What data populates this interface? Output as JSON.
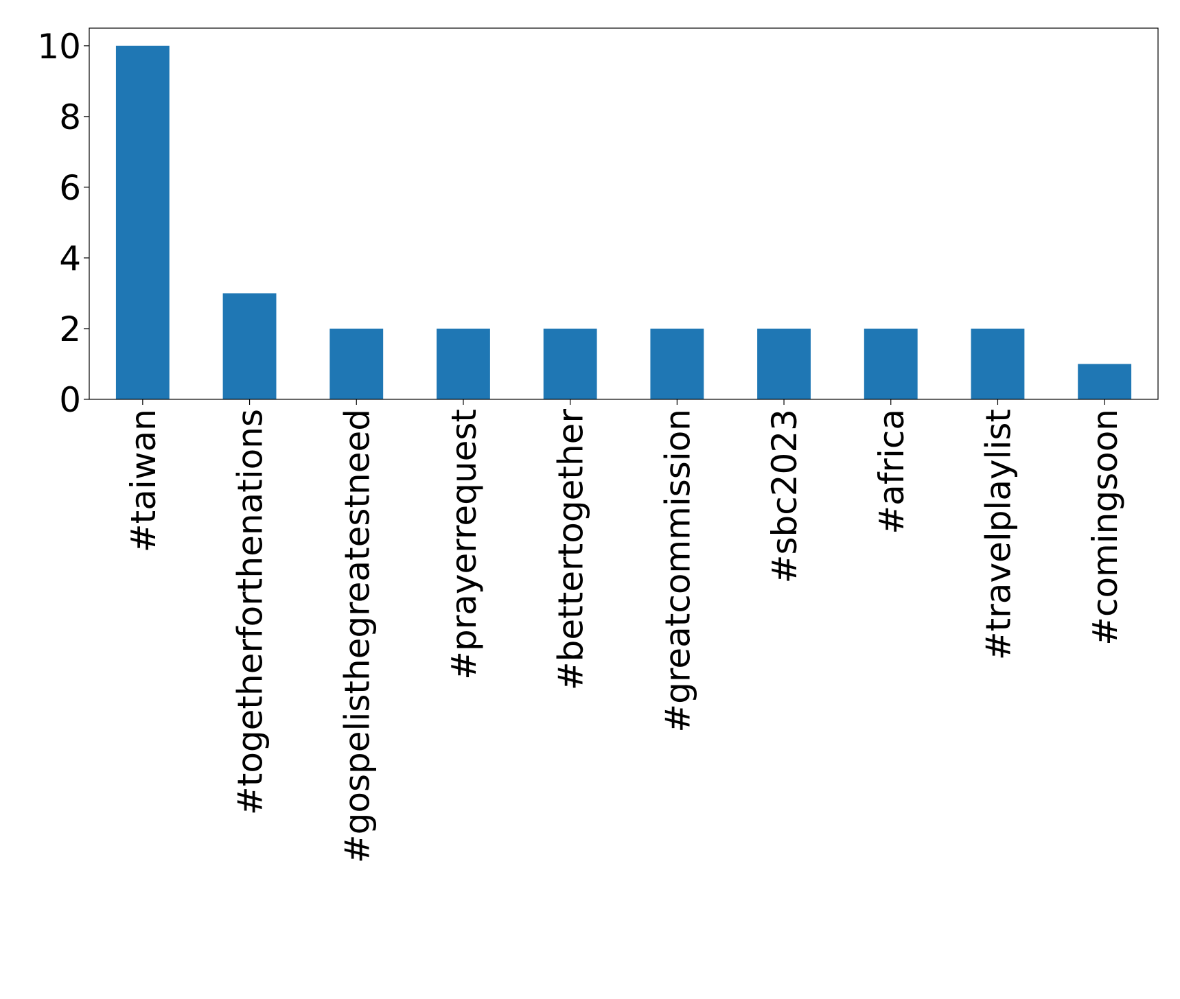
{
  "chart_data": {
    "type": "bar",
    "categories": [
      "#taiwan",
      "#togetherforthenations",
      "#gospelisthegreatestneed",
      "#prayerrequest",
      "#bettertogether",
      "#greatcommission",
      "#sbc2023",
      "#africa",
      "#travelplaylist",
      "#comingsoon"
    ],
    "values": [
      10,
      3,
      2,
      2,
      2,
      2,
      2,
      2,
      2,
      1
    ],
    "color": "#1f77b4",
    "ylim": [
      0,
      10.5
    ],
    "yticks": [
      0,
      2,
      4,
      6,
      8,
      10
    ],
    "grid": false
  }
}
